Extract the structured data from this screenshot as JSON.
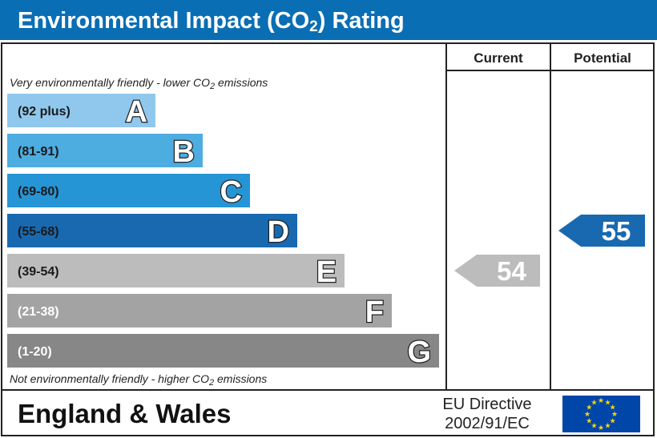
{
  "header": {
    "title_main": "Environmental Impact (CO",
    "title_sub": "2",
    "title_end": ") Rating"
  },
  "columns": {
    "current": "Current",
    "potential": "Potential"
  },
  "top_note": {
    "pre": "Very environmentally friendly - lower CO",
    "sub": "2",
    "post": " emissions"
  },
  "bottom_note": {
    "pre": "Not environmentally friendly - higher CO",
    "sub": "2",
    "post": " emissions"
  },
  "footer": {
    "region": "England & Wales",
    "directive_line1": "EU Directive",
    "directive_line2": "2002/91/EC"
  },
  "colors": {
    "header_bg": "#0a6eb4",
    "bands": [
      "#8fc8ec",
      "#4dace0",
      "#2695d5",
      "#1869b0",
      "#bcbcbc",
      "#a3a3a3",
      "#878787"
    ],
    "eu_flag": "#0046a8",
    "eu_star": "#ffd700"
  },
  "chart_data": {
    "type": "bar",
    "categories": [
      "A",
      "B",
      "C",
      "D",
      "E",
      "F",
      "G"
    ],
    "ranges": [
      "(92 plus)",
      "(81-91)",
      "(69-80)",
      "(55-68)",
      "(39-54)",
      "(21-38)",
      "(1-20)"
    ],
    "range_text_colors": [
      "#1a1a1a",
      "#1a1a1a",
      "#1a1a1a",
      "#1a1a1a",
      "#1a1a1a",
      "#ffffff",
      "#ffffff"
    ],
    "current": {
      "value": 54,
      "band": "E",
      "color": "#bcbcbc"
    },
    "potential": {
      "value": 55,
      "band": "D",
      "color": "#1869b0"
    }
  }
}
